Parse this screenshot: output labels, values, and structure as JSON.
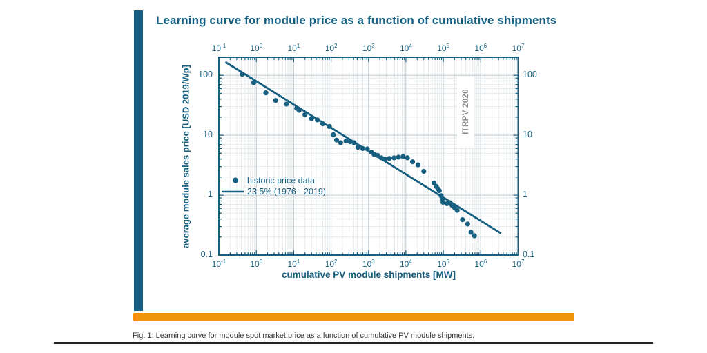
{
  "page": {
    "title": "Learning curve for module price as a function of cumulative shipments",
    "caption": "Fig. 1: Learning curve for module spot market price as a function of cumulative PV module shipments."
  },
  "colors": {
    "teal": "#155E7F",
    "orange": "#F0940C",
    "watermark_gray": "#8C8C8C",
    "grid_major": "#BFCAD0",
    "grid_minor": "#E0E6E9",
    "caption_text": "#333333",
    "bottom_rule": "#222222"
  },
  "chart_data": {
    "type": "scatter",
    "title": "Learning curve for module price as a function of cumulative shipments",
    "xlabel": "cumulative PV module shipments [MW]",
    "ylabel": "average module sales price [USD 2019/Wp]",
    "xscale": "log",
    "yscale": "log",
    "xlim": [
      0.1,
      10000000
    ],
    "ylim": [
      0.1,
      200
    ],
    "grid": "on (major and minor, log)",
    "x_tick_exponents": [
      -1,
      0,
      1,
      2,
      3,
      4,
      5,
      6,
      7
    ],
    "y_tick_labels": [
      "100",
      "10",
      "1",
      "0.1"
    ],
    "y_tick_values": [
      100,
      10,
      1,
      0.1
    ],
    "annotation": "ITRPV 2020",
    "legend_position": "inside center-left",
    "legend": [
      {
        "label": "historic price data",
        "marker": "dot"
      },
      {
        "label": "23.5% (1976 - 2019)",
        "marker": "line"
      }
    ],
    "series": [
      {
        "name": "historic price data",
        "type": "scatter",
        "points": [
          [
            0.42,
            104
          ],
          [
            0.85,
            75
          ],
          [
            1.8,
            51
          ],
          [
            3.3,
            38
          ],
          [
            6.4,
            33
          ],
          [
            12,
            28
          ],
          [
            14,
            26
          ],
          [
            20,
            22
          ],
          [
            30,
            19
          ],
          [
            43,
            18
          ],
          [
            60,
            15.5
          ],
          [
            90,
            14
          ],
          [
            115,
            10.2
          ],
          [
            140,
            8.3
          ],
          [
            180,
            7.5
          ],
          [
            250,
            8.0
          ],
          [
            320,
            7.8
          ],
          [
            410,
            7.5
          ],
          [
            520,
            6.3
          ],
          [
            700,
            6.0
          ],
          [
            930,
            5.9
          ],
          [
            1200,
            5.2
          ],
          [
            1400,
            4.8
          ],
          [
            1750,
            4.6
          ],
          [
            2200,
            4.2
          ],
          [
            2700,
            4.0
          ],
          [
            3600,
            4.1
          ],
          [
            4800,
            4.2
          ],
          [
            6300,
            4.3
          ],
          [
            8400,
            4.4
          ],
          [
            11000,
            4.2
          ],
          [
            15000,
            3.6
          ],
          [
            21000,
            3.2
          ],
          [
            30000,
            2.5
          ],
          [
            56000,
            1.6
          ],
          [
            65000,
            1.4
          ],
          [
            72000,
            1.27
          ],
          [
            78000,
            1.19
          ],
          [
            87000,
            0.98
          ],
          [
            94000,
            0.86
          ],
          [
            98000,
            0.76
          ],
          [
            125000,
            0.72
          ],
          [
            150000,
            0.75
          ],
          [
            170000,
            0.68
          ],
          [
            200000,
            0.62
          ],
          [
            235000,
            0.56
          ],
          [
            325000,
            0.39
          ],
          [
            445000,
            0.33
          ],
          [
            550000,
            0.24
          ],
          [
            680000,
            0.21
          ]
        ]
      },
      {
        "name": "23.5% (1976 - 2019)",
        "type": "line",
        "points": [
          [
            0.15,
            166
          ],
          [
            3500000,
            0.23
          ]
        ]
      }
    ]
  }
}
